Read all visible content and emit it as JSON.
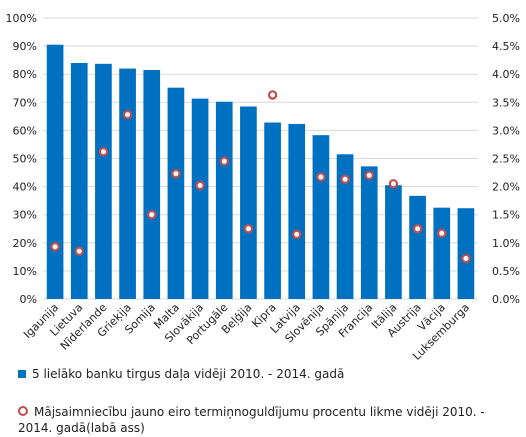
{
  "chart_data": {
    "type": "bar",
    "categories": [
      "Igaunija",
      "Lietuva",
      "Nīderlande",
      "Grieķija",
      "Somija",
      "Malta",
      "Slovākija",
      "Portugāle",
      "Beļģija",
      "Kipra",
      "Latvija",
      "Slovēnija",
      "Spānija",
      "Francija",
      "Itālija",
      "Austrija",
      "Vācija",
      "Luksemburga"
    ],
    "series": [
      {
        "name": "5 lielāko banku tirgus daļa vidēji 2010. - 2014. gadā",
        "axis": "left",
        "type": "bar",
        "color": "#0070c0",
        "values": [
          90.5,
          84,
          83.7,
          82,
          81.5,
          75.2,
          71.3,
          70.2,
          68.5,
          62.8,
          62.3,
          58.3,
          51.5,
          47.2,
          40.5,
          36.7,
          32.5,
          32.3
        ]
      },
      {
        "name": "Mājsaimniecību jauno eiro termiņnoguldījumu procentu likme vidēji 2010. - 2014. gadā(labā ass)",
        "axis": "right",
        "type": "scatter",
        "color": "#c0504d",
        "values": [
          0.93,
          0.85,
          2.62,
          3.28,
          1.5,
          2.23,
          2.02,
          2.45,
          1.25,
          3.63,
          1.15,
          2.17,
          2.13,
          2.2,
          2.05,
          1.25,
          1.17,
          0.72
        ]
      }
    ],
    "y_left": {
      "ylim": [
        0,
        100
      ],
      "ticks": [
        "0%",
        "10%",
        "20%",
        "30%",
        "40%",
        "50%",
        "60%",
        "70%",
        "80%",
        "90%",
        "100%"
      ]
    },
    "y_right": {
      "ylim": [
        0,
        5
      ],
      "ticks": [
        "0.0%",
        "0.5%",
        "1.0%",
        "1.5%",
        "2.0%",
        "2.5%",
        "3.0%",
        "3.5%",
        "4.0%",
        "4.5%",
        "5.0%"
      ]
    },
    "grid": true,
    "legend_position": "bottom"
  },
  "legend": {
    "bar_label": "5 lielāko banku tirgus daļa vidēji 2010. - 2014. gadā",
    "dot_label": "Mājsaimniecību jauno eiro termiņnoguldījumu procentu likme vidēji 2010. - 2014. gadā(labā ass)"
  }
}
